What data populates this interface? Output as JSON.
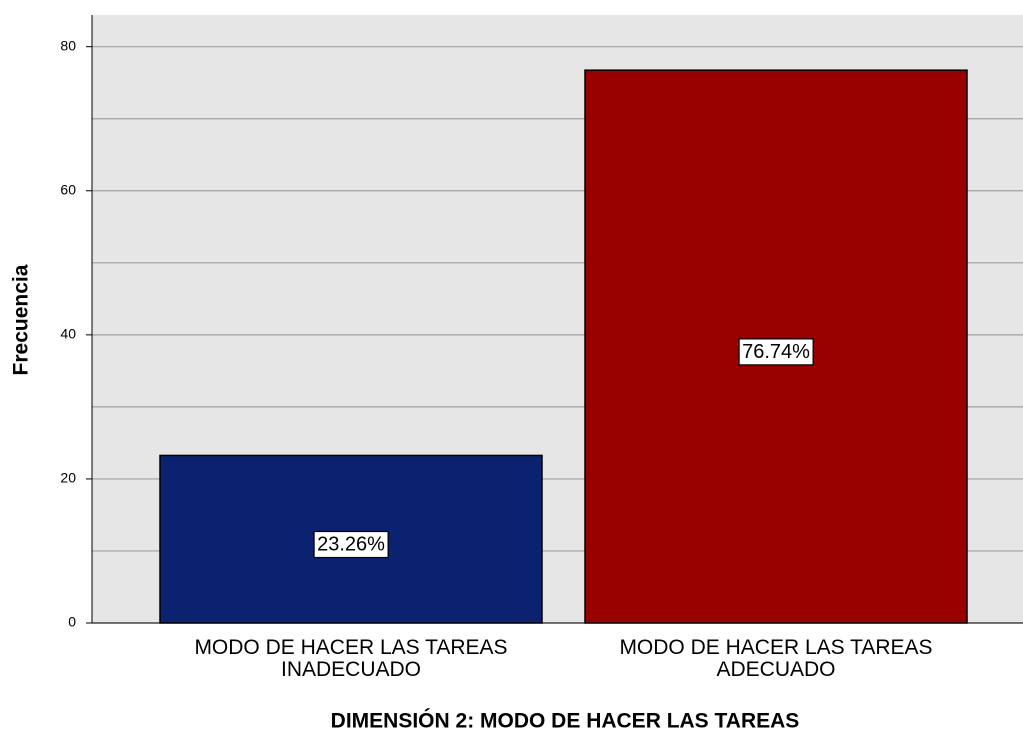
{
  "chart_data": {
    "type": "bar",
    "x_label": "DIMENSIÓN 2: MODO DE HACER LAS TAREAS",
    "y_label": "Frecuencia",
    "categories": [
      "MODO DE HACER LAS TAREAS INADECUADO",
      "MODO DE HACER LAS TAREAS ADECUADO"
    ],
    "values": [
      23.26,
      76.74
    ],
    "value_labels": [
      "23.26%",
      "76.74%"
    ],
    "colors": [
      "#0a2270",
      "#990000"
    ],
    "ylim": [
      0,
      84.4
    ],
    "yticks": [
      0,
      20,
      40,
      60,
      80
    ],
    "minor_yticks": [
      10,
      30,
      50,
      70
    ],
    "grid": true
  }
}
